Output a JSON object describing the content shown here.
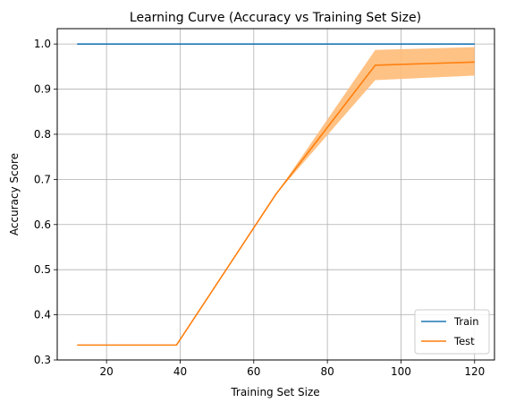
{
  "chart_data": {
    "type": "line",
    "title": "Learning Curve (Accuracy vs Training Set Size)",
    "xlabel": "Training Set Size",
    "ylabel": "Accuracy Score",
    "xlim": [
      6.6,
      125.4
    ],
    "ylim": [
      0.3,
      1.034
    ],
    "xticks": [
      20,
      40,
      60,
      80,
      100,
      120
    ],
    "yticks": [
      0.3,
      0.4,
      0.5,
      0.6,
      0.7,
      0.8,
      0.9,
      1.0
    ],
    "xtick_labels": [
      "20",
      "40",
      "60",
      "80",
      "100",
      "120"
    ],
    "ytick_labels": [
      "0.3",
      "0.4",
      "0.5",
      "0.6",
      "0.7",
      "0.8",
      "0.9",
      "1.0"
    ],
    "grid": true,
    "legend_position": "bottom-right",
    "series": [
      {
        "name": "Train",
        "color": "#1f77b4",
        "x": [
          12,
          39,
          66,
          93,
          120
        ],
        "y": [
          1.0,
          1.0,
          1.0,
          1.0,
          1.0
        ]
      },
      {
        "name": "Test",
        "color": "#ff7f0e",
        "x": [
          12,
          39,
          66,
          93,
          120
        ],
        "y": [
          0.333,
          0.333,
          0.667,
          0.953,
          0.96
        ],
        "band_lower": [
          0.333,
          0.333,
          0.667,
          0.92,
          0.93
        ],
        "band_upper": [
          0.333,
          0.333,
          0.667,
          0.987,
          0.993
        ],
        "band_color": "#ffbb78"
      }
    ]
  }
}
